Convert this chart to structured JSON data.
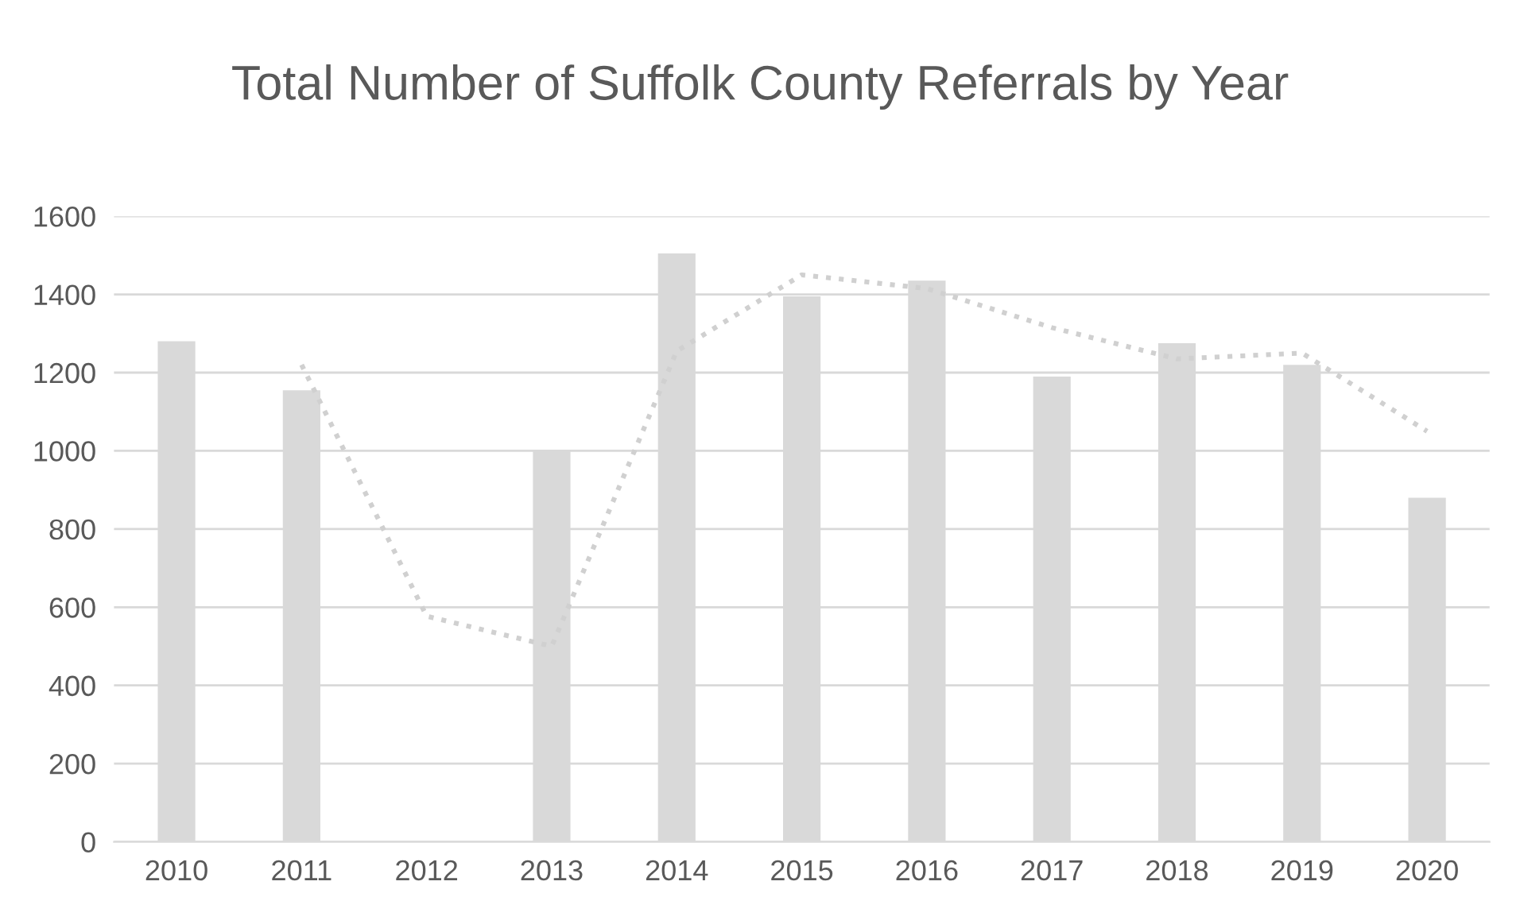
{
  "chart_data": {
    "type": "bar",
    "title": "Total Number of Suffolk County Referrals by Year",
    "categories": [
      "2010",
      "2011",
      "2012",
      "2013",
      "2014",
      "2015",
      "2016",
      "2017",
      "2018",
      "2019",
      "2020"
    ],
    "series": [
      {
        "color": "#d9d9d9",
        "values": [
          1280,
          1155,
          null,
          1000,
          1505,
          1395,
          1435,
          1190,
          1275,
          1220,
          880
        ]
      },
      {
        "type": "line",
        "color": "#d0d0d0",
        "line_style": "dotted",
        "values": [
          null,
          1220,
          577,
          500,
          1255,
          1450,
          1415,
          1315,
          1235,
          1250,
          1050
        ]
      }
    ],
    "ylim": [
      0,
      1600
    ],
    "yticks": [
      0,
      200,
      400,
      600,
      800,
      1000,
      1200,
      1400,
      1600
    ],
    "grid": "y",
    "legend": false
  }
}
